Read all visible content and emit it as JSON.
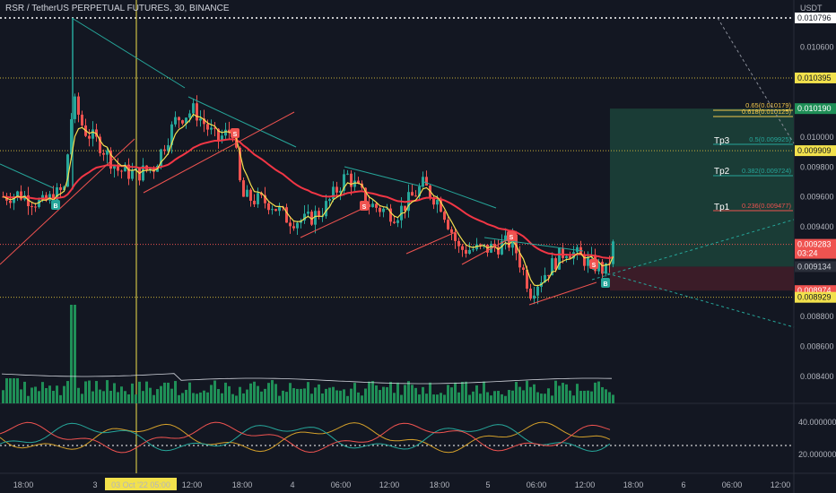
{
  "header": {
    "symbol_title": "RSR / TetherUS PERPETUAL FUTURES, 30, BINANCE"
  },
  "price_axis": {
    "currency": "USDT",
    "ticks": [
      "0.010796",
      "0.010600",
      "0.010395",
      "0.010190",
      "0.010000",
      "0.009909",
      "0.009800",
      "0.009600",
      "0.009400",
      "0.009283",
      "0.009134",
      "0.008974",
      "0.008929",
      "0.008800",
      "0.008600",
      "0.008400"
    ],
    "current_price": "0.009283",
    "countdown": "03:24",
    "level_top": "0.010796",
    "level_yellow_1": "0.010395",
    "level_target": "0.010190",
    "level_yellow_2": "0.009909",
    "level_entry": "0.009134",
    "level_stop": "0.008974",
    "level_yellow_3": "0.008929"
  },
  "oscillator_axis": {
    "ticks": [
      "40.000000",
      "20.000000"
    ]
  },
  "time_axis": {
    "labels": [
      "18:00",
      "3",
      "12:00",
      "18:00",
      "4",
      "06:00",
      "12:00",
      "18:00",
      "5",
      "06:00",
      "12:00",
      "18:00",
      "6",
      "06:00",
      "12:00"
    ],
    "crosshair_label": "03 Oct '22   05:00"
  },
  "fib_levels": [
    {
      "label": "0.65(0.010179)",
      "color": "#f2c94c"
    },
    {
      "label": "0.618(0.010125)",
      "color": "#f2c94c"
    },
    {
      "label": "0.5(0.009925)",
      "color": "#26a69a"
    },
    {
      "label": "0.382(0.009724)",
      "color": "#26a69a"
    },
    {
      "label": "0.236(0.009477)",
      "color": "#ef5350"
    }
  ],
  "targets": [
    "Tp3",
    "Tp2",
    "Tp1"
  ],
  "signals": {
    "buy": "B",
    "sell": "S"
  },
  "colors": {
    "background": "#131722",
    "up": "#26a69a",
    "down": "#ef5350",
    "ema": "#f23645",
    "fast_ma": "#f5e050",
    "crosshair": "#f2e14c",
    "target_zone": "#1a3c36",
    "stop_zone": "#3b1c28",
    "trendline": "#26a69a"
  }
}
